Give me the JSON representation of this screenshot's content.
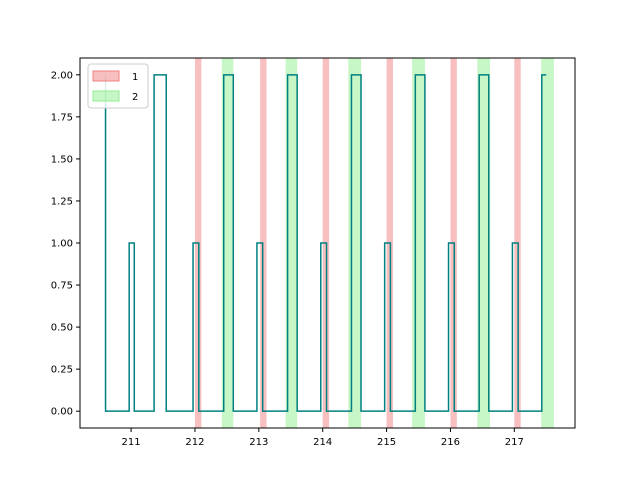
{
  "chart_data": {
    "type": "line",
    "title": "",
    "xlabel": "",
    "ylabel": "",
    "xlim": [
      210.2,
      217.95
    ],
    "ylim": [
      -0.1,
      2.1
    ],
    "grid": false,
    "x_ticks": [
      211,
      212,
      213,
      214,
      215,
      216,
      217
    ],
    "y_ticks": [
      0.0,
      0.25,
      0.5,
      0.75,
      1.0,
      1.25,
      1.5,
      1.75,
      2.0
    ],
    "x_tick_labels": [
      "211",
      "212",
      "213",
      "214",
      "215",
      "216",
      "217"
    ],
    "y_tick_labels": [
      "0.00",
      "0.25",
      "0.50",
      "0.75",
      "1.00",
      "1.25",
      "1.50",
      "1.75",
      "2.00"
    ],
    "line": {
      "color": "#008080",
      "points": [
        [
          210.6,
          2.0
        ],
        [
          210.6,
          0.0
        ],
        [
          210.97,
          0.0
        ],
        [
          210.97,
          1.0
        ],
        [
          211.05,
          1.0
        ],
        [
          211.05,
          0.0
        ],
        [
          211.36,
          0.0
        ],
        [
          211.36,
          2.0
        ],
        [
          211.55,
          2.0
        ],
        [
          211.55,
          0.0
        ],
        [
          211.97,
          0.0
        ],
        [
          211.97,
          1.0
        ],
        [
          212.06,
          1.0
        ],
        [
          212.06,
          0.0
        ],
        [
          212.45,
          0.0
        ],
        [
          212.45,
          2.0
        ],
        [
          212.6,
          2.0
        ],
        [
          212.6,
          0.0
        ],
        [
          212.97,
          0.0
        ],
        [
          212.97,
          1.0
        ],
        [
          213.06,
          1.0
        ],
        [
          213.06,
          0.0
        ],
        [
          213.45,
          0.0
        ],
        [
          213.45,
          2.0
        ],
        [
          213.6,
          2.0
        ],
        [
          213.6,
          0.0
        ],
        [
          213.97,
          0.0
        ],
        [
          213.97,
          1.0
        ],
        [
          214.06,
          1.0
        ],
        [
          214.06,
          0.0
        ],
        [
          214.45,
          0.0
        ],
        [
          214.45,
          2.0
        ],
        [
          214.6,
          2.0
        ],
        [
          214.6,
          0.0
        ],
        [
          214.97,
          0.0
        ],
        [
          214.97,
          1.0
        ],
        [
          215.06,
          1.0
        ],
        [
          215.06,
          0.0
        ],
        [
          215.45,
          0.0
        ],
        [
          215.45,
          2.0
        ],
        [
          215.6,
          2.0
        ],
        [
          215.6,
          0.0
        ],
        [
          215.97,
          0.0
        ],
        [
          215.97,
          1.0
        ],
        [
          216.06,
          1.0
        ],
        [
          216.06,
          0.0
        ],
        [
          216.45,
          0.0
        ],
        [
          216.45,
          2.0
        ],
        [
          216.6,
          2.0
        ],
        [
          216.6,
          0.0
        ],
        [
          216.97,
          0.0
        ],
        [
          216.97,
          1.0
        ],
        [
          217.06,
          1.0
        ],
        [
          217.06,
          0.0
        ],
        [
          217.43,
          0.0
        ],
        [
          217.43,
          2.0
        ],
        [
          217.5,
          2.0
        ]
      ]
    },
    "series": [
      {
        "name": "1",
        "color": "#f08080",
        "spans": [
          [
            212.0,
            212.1
          ],
          [
            213.02,
            213.12
          ],
          [
            214.0,
            214.1
          ],
          [
            215.0,
            215.1
          ],
          [
            216.0,
            216.1
          ],
          [
            217.0,
            217.1
          ]
        ]
      },
      {
        "name": "2",
        "color": "#90ee90",
        "spans": [
          [
            212.42,
            212.6
          ],
          [
            213.42,
            213.6
          ],
          [
            214.4,
            214.6
          ],
          [
            215.4,
            215.6
          ],
          [
            216.42,
            216.62
          ],
          [
            217.42,
            217.62
          ]
        ]
      }
    ],
    "legend": {
      "placement": "top-left",
      "entries": [
        "1",
        "2"
      ]
    }
  }
}
